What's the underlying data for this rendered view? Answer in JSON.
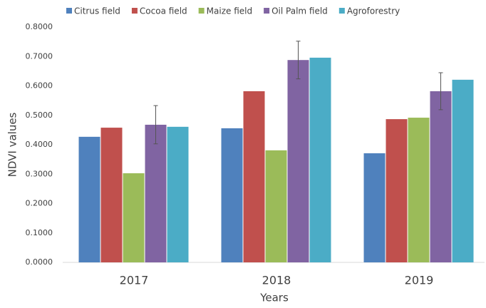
{
  "chart_data": {
    "type": "bar",
    "x_label": "Years",
    "y_label": "NDVI values",
    "categories": [
      "2017",
      "2018",
      "2019"
    ],
    "series": [
      {
        "name": "Citrus field",
        "color": "#4f81bd",
        "values": [
          0.427,
          0.456,
          0.371
        ]
      },
      {
        "name": "Cocoa field",
        "color": "#c0504d",
        "values": [
          0.458,
          0.582,
          0.487
        ]
      },
      {
        "name": "Maize field",
        "color": "#9bbb59",
        "values": [
          0.303,
          0.381,
          0.492
        ]
      },
      {
        "name": "Oil Palm field",
        "color": "#8064a2",
        "values": [
          0.468,
          0.688,
          0.582
        ],
        "errors": [
          0.065,
          0.064,
          0.063
        ]
      },
      {
        "name": "Agroforestry",
        "color": "#4bacc6",
        "values": [
          0.461,
          0.696,
          0.621
        ]
      }
    ],
    "ylim": [
      0,
      0.8
    ],
    "yticks": [
      {
        "value": 0,
        "label": "0.0000"
      },
      {
        "value": 0.1,
        "label": "0.1000"
      },
      {
        "value": 0.2,
        "label": "0.2000"
      },
      {
        "value": 0.3,
        "label": "0.3000"
      },
      {
        "value": 0.4,
        "label": "0.4000"
      },
      {
        "value": 0.5,
        "label": "0.5000"
      },
      {
        "value": 0.6,
        "label": "0.6000"
      },
      {
        "value": 0.7,
        "label": "0.7000"
      },
      {
        "value": 0.8,
        "label": "0.8000"
      }
    ],
    "grid": false,
    "legend": "top"
  }
}
